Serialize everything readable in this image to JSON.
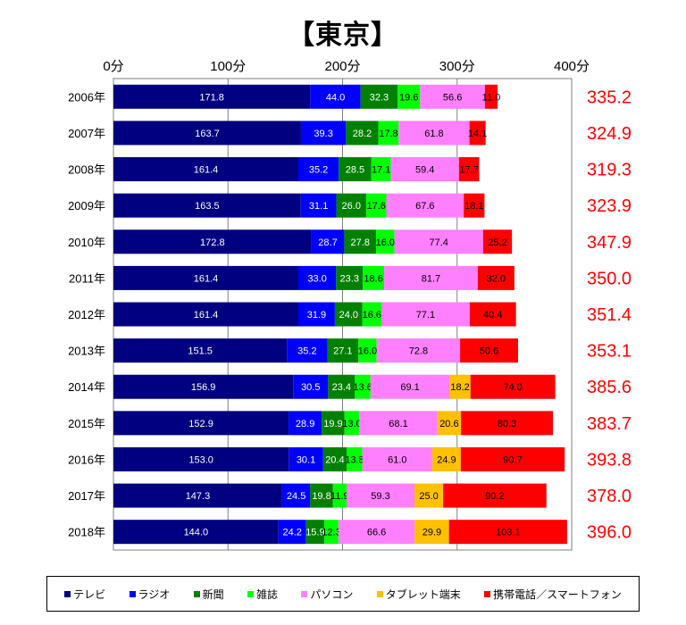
{
  "title": "【東京】",
  "chart_data": {
    "type": "bar",
    "orientation": "horizontal",
    "stacked": true,
    "title": "【東京】",
    "xlim": [
      0,
      400
    ],
    "x_ticks": [
      "0分",
      "100分",
      "200分",
      "300分",
      "400分"
    ],
    "grid": true,
    "legend_position": "bottom",
    "categories": [
      "2006年",
      "2007年",
      "2008年",
      "2009年",
      "2010年",
      "2011年",
      "2012年",
      "2013年",
      "2014年",
      "2015年",
      "2016年",
      "2017年",
      "2018年"
    ],
    "series": [
      {
        "name": "テレビ",
        "color": "#000080",
        "label_color": "#ffffff",
        "values": [
          171.8,
          163.7,
          161.4,
          163.5,
          172.8,
          161.4,
          161.4,
          151.5,
          156.9,
          152.9,
          153.0,
          147.3,
          144.0
        ]
      },
      {
        "name": "ラジオ",
        "color": "#0000ff",
        "label_color": "#ffffff",
        "values": [
          44.0,
          39.3,
          35.2,
          31.1,
          28.7,
          33.0,
          31.9,
          35.2,
          30.5,
          28.9,
          30.1,
          24.5,
          24.2
        ]
      },
      {
        "name": "新聞",
        "color": "#008000",
        "label_color": "#ffffff",
        "values": [
          32.3,
          28.2,
          28.5,
          26.0,
          27.8,
          23.3,
          24.0,
          27.1,
          23.4,
          19.9,
          20.4,
          19.8,
          15.9
        ]
      },
      {
        "name": "雑誌",
        "color": "#00ff00",
        "label_color": "#000000",
        "values": [
          19.6,
          17.8,
          17.1,
          17.6,
          16.0,
          18.6,
          16.6,
          16.0,
          13.6,
          13.0,
          13.8,
          11.9,
          12.3
        ]
      },
      {
        "name": "パソコン",
        "color": "#ff80ff",
        "label_color": "#000000",
        "values": [
          56.6,
          61.8,
          59.4,
          67.6,
          77.4,
          81.7,
          77.1,
          72.8,
          69.1,
          68.1,
          61.0,
          59.3,
          66.6
        ]
      },
      {
        "name": "タブレット端末",
        "color": "#ffc000",
        "label_color": "#000000",
        "values": [
          null,
          null,
          null,
          null,
          null,
          null,
          null,
          null,
          18.2,
          20.6,
          24.9,
          25.0,
          29.9
        ]
      },
      {
        "name": "携帯電話／スマートフォン",
        "color": "#ff0000",
        "label_color": "#000000",
        "values": [
          11.0,
          14.1,
          17.7,
          18.1,
          25.2,
          32.0,
          40.4,
          50.6,
          74.0,
          80.3,
          90.7,
          90.2,
          103.1
        ]
      }
    ],
    "totals": [
      "335.2",
      "324.9",
      "319.3",
      "323.9",
      "347.9",
      "350.0",
      "351.4",
      "353.1",
      "385.6",
      "383.7",
      "393.8",
      "378.0",
      "396.0"
    ],
    "totals_color": "#ff0000"
  }
}
